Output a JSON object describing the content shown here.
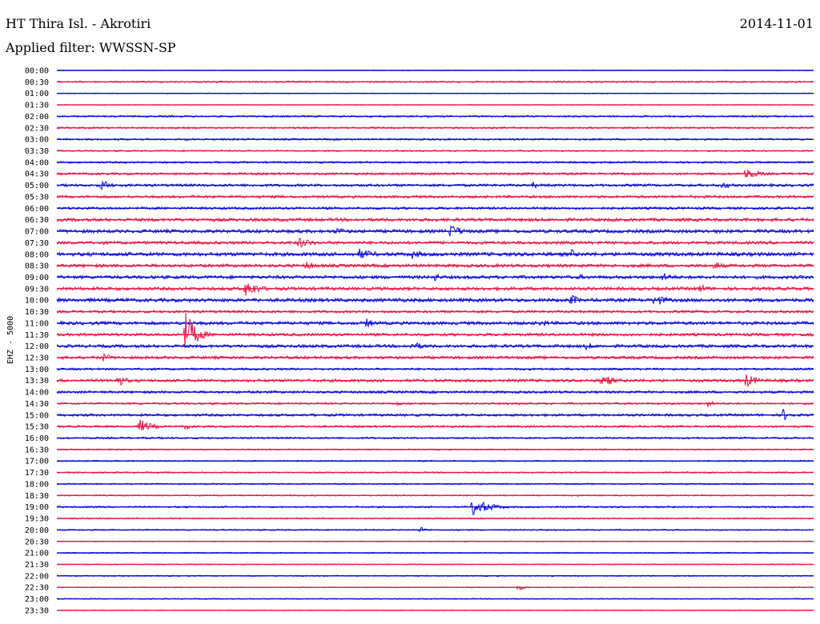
{
  "header": {
    "station": "HT Thira Isl. - Akrotiri",
    "date": "2014-11-01",
    "filter": "Applied filter: WWSSN-SP"
  },
  "colors": {
    "even_trace": "#0a0adf",
    "odd_trace": "#e81a48",
    "background": "#ffffff",
    "text": "#000000"
  },
  "chart_data": {
    "type": "helicorder",
    "ylabel": "EHZ - 5000",
    "row_labels": [
      "00:00",
      "00:30",
      "01:00",
      "01:30",
      "02:00",
      "02:30",
      "03:00",
      "03:30",
      "04:00",
      "04:30",
      "05:00",
      "05:30",
      "06:00",
      "06:30",
      "07:00",
      "07:30",
      "08:00",
      "08:30",
      "09:00",
      "09:30",
      "10:00",
      "10:30",
      "11:00",
      "11:30",
      "12:00",
      "12:30",
      "13:00",
      "13:30",
      "14:00",
      "14:30",
      "15:00",
      "15:30",
      "16:00",
      "16:30",
      "17:00",
      "17:30",
      "18:00",
      "18:30",
      "19:00",
      "19:30",
      "20:00",
      "20:30",
      "21:00",
      "21:30",
      "22:00",
      "22:30",
      "23:00",
      "23:30"
    ],
    "row_noise": [
      0.4,
      1.0,
      0.5,
      0.5,
      1.0,
      1.1,
      1.1,
      0.9,
      1.1,
      1.4,
      1.6,
      1.6,
      1.5,
      2.0,
      2.1,
      1.9,
      2.3,
      2.0,
      2.0,
      2.0,
      2.2,
      1.6,
      2.0,
      1.8,
      1.9,
      1.8,
      1.3,
      1.8,
      1.5,
      1.2,
      1.5,
      1.3,
      1.1,
      0.8,
      0.8,
      0.8,
      0.8,
      0.8,
      1.0,
      0.8,
      0.8,
      0.6,
      0.7,
      0.6,
      0.7,
      0.6,
      0.6,
      0.5
    ],
    "events": [
      {
        "row": 9,
        "t": 0.91,
        "amp": 7,
        "dur": 0.06
      },
      {
        "row": 10,
        "t": 0.06,
        "amp": 8,
        "dur": 0.03
      },
      {
        "row": 10,
        "t": 0.63,
        "amp": 5,
        "dur": 0.02
      },
      {
        "row": 10,
        "t": 0.88,
        "amp": 5,
        "dur": 0.04
      },
      {
        "row": 14,
        "t": 0.37,
        "amp": 5,
        "dur": 0.05
      },
      {
        "row": 14,
        "t": 0.52,
        "amp": 9,
        "dur": 0.05
      },
      {
        "row": 15,
        "t": 0.32,
        "amp": 7,
        "dur": 0.06
      },
      {
        "row": 16,
        "t": 0.4,
        "amp": 7,
        "dur": 0.07
      },
      {
        "row": 16,
        "t": 0.47,
        "amp": 6,
        "dur": 0.05
      },
      {
        "row": 16,
        "t": 0.68,
        "amp": 7,
        "dur": 0.02
      },
      {
        "row": 17,
        "t": 0.33,
        "amp": 6,
        "dur": 0.04
      },
      {
        "row": 17,
        "t": 0.87,
        "amp": 7,
        "dur": 0.03
      },
      {
        "row": 18,
        "t": 0.5,
        "amp": 6,
        "dur": 0.02
      },
      {
        "row": 18,
        "t": 0.69,
        "amp": 4,
        "dur": 0.03
      },
      {
        "row": 18,
        "t": 0.8,
        "amp": 6,
        "dur": 0.05
      },
      {
        "row": 19,
        "t": 0.25,
        "amp": 12,
        "dur": 0.05
      },
      {
        "row": 19,
        "t": 0.85,
        "amp": 6,
        "dur": 0.04
      },
      {
        "row": 20,
        "t": 0.09,
        "amp": 4,
        "dur": 0.03
      },
      {
        "row": 20,
        "t": 0.45,
        "amp": 5,
        "dur": 0.03
      },
      {
        "row": 20,
        "t": 0.68,
        "amp": 8,
        "dur": 0.03
      },
      {
        "row": 20,
        "t": 0.79,
        "amp": 8,
        "dur": 0.05
      },
      {
        "row": 22,
        "t": 0.41,
        "amp": 7,
        "dur": 0.03
      },
      {
        "row": 22,
        "t": 0.64,
        "amp": 6,
        "dur": 0.03
      },
      {
        "row": 23,
        "t": 0.17,
        "amp": 30,
        "dur": 0.04
      },
      {
        "row": 24,
        "t": 0.47,
        "amp": 6,
        "dur": 0.05
      },
      {
        "row": 24,
        "t": 0.7,
        "amp": 6,
        "dur": 0.03
      },
      {
        "row": 25,
        "t": 0.06,
        "amp": 6,
        "dur": 0.04
      },
      {
        "row": 27,
        "t": 0.08,
        "amp": 8,
        "dur": 0.04
      },
      {
        "row": 27,
        "t": 0.72,
        "amp": 9,
        "dur": 0.05
      },
      {
        "row": 27,
        "t": 0.91,
        "amp": 9,
        "dur": 0.05
      },
      {
        "row": 29,
        "t": 0.45,
        "amp": 4,
        "dur": 0.02
      },
      {
        "row": 29,
        "t": 0.86,
        "amp": 5,
        "dur": 0.03
      },
      {
        "row": 30,
        "t": 0.96,
        "amp": 8,
        "dur": 0.03
      },
      {
        "row": 31,
        "t": 0.11,
        "amp": 9,
        "dur": 0.05
      },
      {
        "row": 31,
        "t": 0.17,
        "amp": 4,
        "dur": 0.03
      },
      {
        "row": 38,
        "t": 0.55,
        "amp": 11,
        "dur": 0.07
      },
      {
        "row": 40,
        "t": 0.48,
        "amp": 4,
        "dur": 0.03
      },
      {
        "row": 45,
        "t": 0.61,
        "amp": 4,
        "dur": 0.03
      }
    ]
  }
}
